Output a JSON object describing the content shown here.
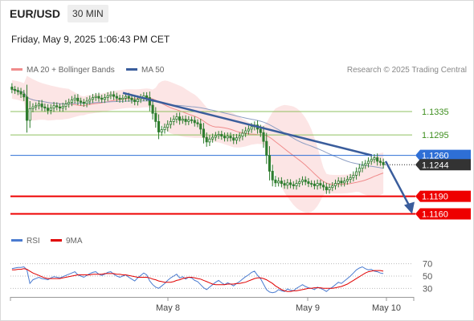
{
  "header": {
    "symbol": "EUR/USD",
    "timeframe": "30 MIN"
  },
  "datetime": "Friday, May 9, 2025 1:06:43 PM CET",
  "legend": {
    "bollinger": "MA 20 + Bollinger Bands",
    "ma50": "MA 50",
    "copyright": "Research © 2025 Trading Central"
  },
  "rsi_legend": {
    "rsi": "RSI",
    "ma": "9MA"
  },
  "colors": {
    "candle": "#2f7d2f",
    "bollinger": "#f08c8c",
    "band_fill": "#fbdcdc",
    "ma50": "#3a5d9c",
    "resistance": "#8fc060",
    "support": "#ee0000",
    "pivot": "#2e6fd6",
    "last": "#333333",
    "rsi": "#4a7bd0",
    "rsi_ma": "#e00000"
  },
  "chart_data": [
    {
      "type": "candlestick",
      "y_range": [
        1.114,
        1.139
      ],
      "x_labels": [
        "May 8",
        "May 9",
        "May 10"
      ],
      "price_levels": [
        {
          "label": "1.1335",
          "value": 1.1335,
          "kind": "resistance"
        },
        {
          "label": "1.1295",
          "value": 1.1295,
          "kind": "resistance"
        },
        {
          "label": "1.1260",
          "value": 1.126,
          "kind": "pivot"
        },
        {
          "label": "1.1244",
          "value": 1.1244,
          "kind": "last"
        },
        {
          "label": "1.1190",
          "value": 1.119,
          "kind": "support"
        },
        {
          "label": "1.1160",
          "value": 1.116,
          "kind": "support"
        }
      ],
      "trendline": {
        "from": 1.1367,
        "to": 1.126
      },
      "projection": {
        "from": 1.125,
        "to": 1.116
      },
      "closes": [
        1.1373,
        1.1371,
        1.1369,
        1.1365,
        1.136,
        1.132,
        1.134,
        1.1343,
        1.1345,
        1.1348,
        1.1343,
        1.1341,
        1.1337,
        1.1341,
        1.1345,
        1.1343,
        1.1341,
        1.1344,
        1.1348,
        1.1351,
        1.1355,
        1.1358,
        1.1353,
        1.1351,
        1.1349,
        1.1353,
        1.1356,
        1.1359,
        1.1361,
        1.1358,
        1.1356,
        1.1359,
        1.1362,
        1.1364,
        1.1361,
        1.1358,
        1.1356,
        1.1358,
        1.1361,
        1.1358,
        1.1355,
        1.1352,
        1.1356,
        1.1359,
        1.1362,
        1.1359,
        1.1346,
        1.1332,
        1.1318,
        1.13,
        1.1304,
        1.1308,
        1.1313,
        1.1318,
        1.1322,
        1.1326,
        1.132,
        1.1322,
        1.1318,
        1.1321,
        1.132,
        1.1316,
        1.1314,
        1.1305,
        1.1291,
        1.1283,
        1.1288,
        1.1291,
        1.1294,
        1.1296,
        1.1293,
        1.129,
        1.1293,
        1.129,
        1.1286,
        1.129,
        1.1293,
        1.1298,
        1.1302,
        1.1305,
        1.1309,
        1.1312,
        1.1305,
        1.1299,
        1.1284,
        1.126,
        1.1233,
        1.1218,
        1.1213,
        1.1216,
        1.1212,
        1.1209,
        1.1213,
        1.121,
        1.1208,
        1.1212,
        1.1215,
        1.1218,
        1.1215,
        1.1212,
        1.1211,
        1.1208,
        1.1212,
        1.1209,
        1.1206,
        1.1201,
        1.1205,
        1.1208,
        1.1212,
        1.1216,
        1.1213,
        1.1216,
        1.1219,
        1.1222,
        1.1226,
        1.1232,
        1.1238,
        1.1243,
        1.1246,
        1.125,
        1.1253,
        1.1256,
        1.125,
        1.1248,
        1.1244
      ]
    },
    {
      "type": "line",
      "name": "RSI",
      "y_range": [
        20,
        80
      ],
      "y_ticks": [
        70,
        50,
        30
      ],
      "rsi": [
        62,
        63,
        64,
        64,
        65,
        60,
        38,
        44,
        46,
        48,
        46,
        45,
        44,
        47,
        49,
        48,
        47,
        49,
        51,
        53,
        55,
        57,
        52,
        50,
        48,
        51,
        54,
        56,
        57,
        53,
        51,
        53,
        56,
        57,
        53,
        50,
        48,
        50,
        52,
        48,
        45,
        42,
        47,
        51,
        55,
        52,
        42,
        36,
        32,
        30,
        34,
        38,
        43,
        47,
        50,
        53,
        47,
        49,
        45,
        48,
        47,
        43,
        41,
        36,
        31,
        28,
        32,
        36,
        40,
        43,
        39,
        36,
        39,
        37,
        34,
        38,
        41,
        45,
        49,
        52,
        56,
        58,
        51,
        46,
        37,
        28,
        24,
        23,
        24,
        28,
        26,
        25,
        29,
        27,
        26,
        30,
        33,
        36,
        33,
        31,
        30,
        28,
        32,
        30,
        28,
        25,
        29,
        32,
        36,
        40,
        38,
        42,
        46,
        50,
        55,
        60,
        63,
        65,
        62,
        60,
        61,
        58,
        57,
        55,
        54
      ],
      "rsi_ma": [
        60,
        60,
        61,
        61,
        62,
        61,
        58,
        55,
        53,
        51,
        49,
        47,
        46,
        46,
        46,
        46,
        46,
        47,
        48,
        49,
        50,
        51,
        52,
        52,
        52,
        52,
        52,
        53,
        53,
        53,
        53,
        54,
        54,
        54,
        54,
        53,
        53,
        52,
        52,
        51,
        50,
        49,
        48,
        48,
        48,
        48,
        47,
        45,
        44,
        42,
        41,
        40,
        40,
        40,
        41,
        43,
        44,
        46,
        47,
        48,
        48,
        47,
        46,
        45,
        43,
        41,
        39,
        37,
        36,
        36,
        36,
        36,
        37,
        37,
        37,
        38,
        38,
        39,
        40,
        42,
        44,
        46,
        47,
        47,
        46,
        44,
        41,
        38,
        34,
        31,
        28,
        26,
        25,
        25,
        26,
        26,
        27,
        28,
        29,
        30,
        30,
        31,
        31,
        31,
        30,
        30,
        30,
        30,
        31,
        32,
        33,
        35,
        37,
        40,
        43,
        46,
        49,
        52,
        55,
        57,
        58,
        59,
        59,
        59,
        58
      ]
    }
  ]
}
